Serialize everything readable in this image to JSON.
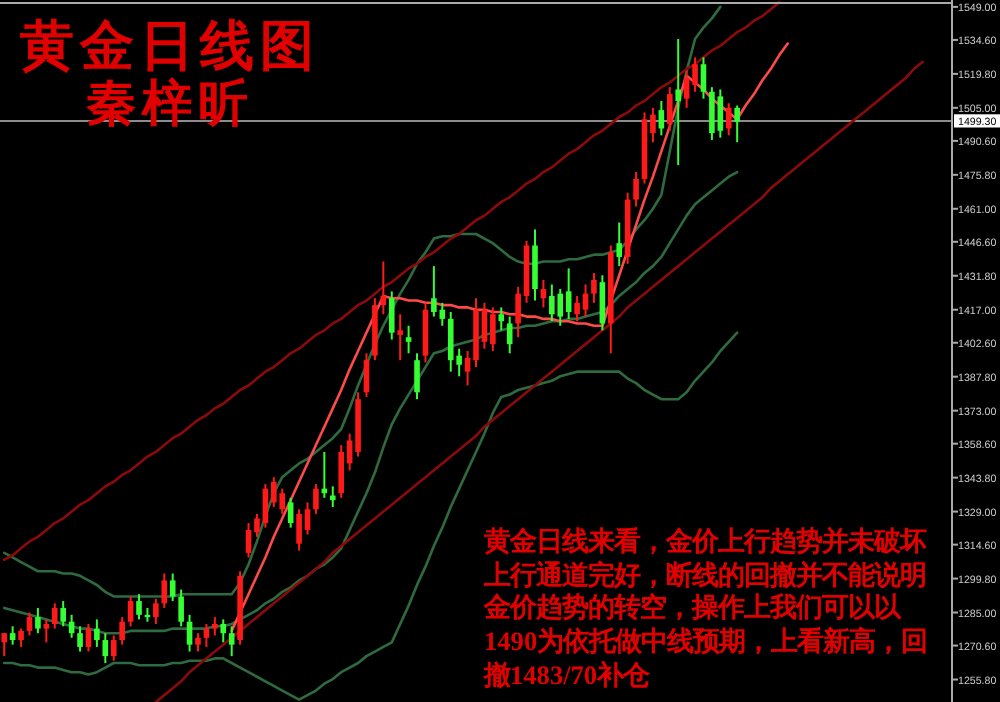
{
  "chart_data": {
    "type": "candlestick",
    "title": "黄金日线图",
    "subtitle": "秦梓昕",
    "annotations": [
      "黄金日线来看，金价上行趋势并未破坏上行通道完好，断线的回撤并不能说明金价趋势的转空，操作上我们可以以1490为依托做中线预期，上看新高，回撤1483/70补仓"
    ],
    "categories": [
      null,
      null,
      null,
      null,
      null,
      null,
      null,
      null,
      null,
      null,
      null,
      null,
      null,
      null,
      null,
      null,
      null,
      null,
      null,
      null,
      null,
      null,
      null,
      null,
      null,
      null,
      null,
      null,
      null,
      null,
      null,
      null,
      null,
      null,
      null,
      null,
      null,
      null,
      null,
      null,
      null,
      null,
      null,
      null,
      null,
      null,
      null,
      null,
      null,
      null,
      null,
      null,
      null,
      null,
      null,
      null,
      null,
      null,
      null,
      null,
      null,
      null,
      null,
      null,
      null,
      null,
      null,
      null,
      null,
      null,
      null,
      null,
      null,
      null,
      null,
      null,
      null,
      null,
      null,
      null,
      null,
      null,
      null,
      null,
      null,
      null,
      null,
      null,
      null,
      null,
      null,
      null,
      null,
      null,
      null,
      null,
      null,
      null,
      null,
      null,
      null,
      null,
      null,
      null,
      null,
      null,
      null,
      null,
      null,
      null,
      null,
      null,
      null
    ],
    "ohlc": [
      [
        1272,
        1276,
        1266,
        1276
      ],
      [
        1276,
        1279,
        1271,
        1273
      ],
      [
        1273,
        1278,
        1270,
        1277
      ],
      [
        1277,
        1285,
        1275,
        1283
      ],
      [
        1283,
        1287,
        1276,
        1278
      ],
      [
        1278,
        1282,
        1272,
        1280
      ],
      [
        1280,
        1289,
        1278,
        1287
      ],
      [
        1287,
        1290,
        1279,
        1281
      ],
      [
        1281,
        1284,
        1274,
        1276
      ],
      [
        1276,
        1279,
        1268,
        1270
      ],
      [
        1270,
        1280,
        1268,
        1278
      ],
      [
        1278,
        1282,
        1270,
        1273
      ],
      [
        1273,
        1276,
        1263,
        1266
      ],
      [
        1266,
        1275,
        1264,
        1273
      ],
      [
        1273,
        1283,
        1271,
        1281
      ],
      [
        1281,
        1292,
        1279,
        1290
      ],
      [
        1290,
        1293,
        1282,
        1284
      ],
      [
        1284,
        1287,
        1281,
        1283
      ],
      [
        1283,
        1291,
        1280,
        1289
      ],
      [
        1289,
        1302,
        1287,
        1299
      ],
      [
        1299,
        1302,
        1290,
        1292
      ],
      [
        1292,
        1295,
        1279,
        1281
      ],
      [
        1281,
        1284,
        1268,
        1271
      ],
      [
        1271,
        1276,
        1268,
        1274
      ],
      [
        1274,
        1280,
        1270,
        1278
      ],
      [
        1278,
        1283,
        1275,
        1280
      ],
      [
        1280,
        1282,
        1272,
        1276
      ],
      [
        1276,
        1279,
        1266,
        1271
      ],
      [
        1273,
        1303,
        1271,
        1301
      ],
      [
        1311,
        1324,
        1309,
        1321
      ],
      [
        1320,
        1328,
        1318,
        1326
      ],
      [
        1324,
        1341,
        1322,
        1339
      ],
      [
        1333,
        1344,
        1331,
        1342
      ],
      [
        1330,
        1339,
        1328,
        1337
      ],
      [
        1333,
        1335,
        1322,
        1324
      ],
      [
        1315,
        1330,
        1312,
        1328
      ],
      [
        1321,
        1333,
        1319,
        1330
      ],
      [
        1330,
        1341,
        1328,
        1339
      ],
      [
        1339,
        1355,
        1335,
        1337
      ],
      [
        1336,
        1340,
        1331,
        1334
      ],
      [
        1337,
        1358,
        1335,
        1355
      ],
      [
        1350,
        1363,
        1347,
        1360
      ],
      [
        1355,
        1381,
        1353,
        1378
      ],
      [
        1381,
        1398,
        1379,
        1395
      ],
      [
        1397,
        1422,
        1395,
        1419
      ],
      [
        1419,
        1438,
        1415,
        1423
      ],
      [
        1422,
        1425,
        1404,
        1407
      ],
      [
        1406,
        1415,
        1395,
        1408
      ],
      [
        1405,
        1410,
        1398,
        1403
      ],
      [
        1395,
        1398,
        1378,
        1381
      ],
      [
        1397,
        1420,
        1394,
        1417
      ],
      [
        1422,
        1436,
        1414,
        1416
      ],
      [
        1417,
        1420,
        1410,
        1413
      ],
      [
        1413,
        1416,
        1390,
        1395
      ],
      [
        1397,
        1400,
        1388,
        1393
      ],
      [
        1390,
        1399,
        1384,
        1396
      ],
      [
        1395,
        1422,
        1392,
        1417
      ],
      [
        1403,
        1420,
        1400,
        1417
      ],
      [
        1402,
        1418,
        1399,
        1415
      ],
      [
        1415,
        1418,
        1408,
        1412
      ],
      [
        1411,
        1414,
        1398,
        1402
      ],
      [
        1411,
        1427,
        1405,
        1424
      ],
      [
        1423,
        1447,
        1420,
        1445
      ],
      [
        1445,
        1452,
        1421,
        1426
      ],
      [
        1422,
        1430,
        1418,
        1426
      ],
      [
        1423,
        1428,
        1412,
        1415
      ],
      [
        1424,
        1426,
        1410,
        1414
      ],
      [
        1425,
        1435,
        1413,
        1416
      ],
      [
        1415,
        1423,
        1412,
        1420
      ],
      [
        1417,
        1428,
        1414,
        1424
      ],
      [
        1424,
        1433,
        1420,
        1430
      ],
      [
        1429,
        1432,
        1408,
        1411
      ],
      [
        1411,
        1445,
        1398,
        1442
      ],
      [
        1446,
        1455,
        1436,
        1440
      ],
      [
        1440,
        1468,
        1437,
        1465
      ],
      [
        1465,
        1477,
        1462,
        1474
      ],
      [
        1474,
        1503,
        1472,
        1500
      ],
      [
        1494,
        1505,
        1490,
        1502
      ],
      [
        1504,
        1508,
        1493,
        1496
      ],
      [
        1498,
        1514,
        1495,
        1511
      ],
      [
        1513,
        1535,
        1480,
        1508
      ],
      [
        1509,
        1521,
        1505,
        1518
      ],
      [
        1515,
        1527,
        1512,
        1524
      ],
      [
        1524,
        1527,
        1509,
        1512
      ],
      [
        1512,
        1514,
        1491,
        1494
      ],
      [
        1510,
        1513,
        1492,
        1495
      ],
      [
        1496,
        1507,
        1493,
        1505
      ],
      [
        1505,
        1506,
        1490,
        1499
      ],
      null,
      null,
      null,
      null,
      null,
      null,
      null,
      null,
      null,
      null,
      null,
      null,
      null,
      null,
      null,
      null,
      null,
      null,
      null,
      null,
      null,
      null,
      null,
      null,
      null
    ],
    "colors": [
      "#ff1a1a",
      "#33ff33",
      "#ff1a1a",
      "#ff1a1a",
      "#33ff33",
      "#ff1a1a",
      "#ff1a1a",
      "#33ff33",
      "#33ff33",
      "#33ff33",
      "#ff1a1a",
      "#33ff33",
      "#33ff33",
      "#ff1a1a",
      "#ff1a1a",
      "#ff1a1a",
      "#33ff33",
      "#33ff33",
      "#ff1a1a",
      "#ff1a1a",
      "#33ff33",
      "#33ff33",
      "#33ff33",
      "#ff1a1a",
      "#ff1a1a",
      "#ff1a1a",
      "#33ff33",
      "#33ff33",
      "#ff1a1a",
      "#ff1a1a",
      "#ff1a1a",
      "#ff1a1a",
      "#ff1a1a",
      "#ff1a1a",
      "#33ff33",
      "#ff1a1a",
      "#ff1a1a",
      "#ff1a1a",
      "#33ff33",
      "#33ff33",
      "#ff1a1a",
      "#ff1a1a",
      "#ff1a1a",
      "#ff1a1a",
      "#ff1a1a",
      "#ff1a1a",
      "#33ff33",
      "#ff1a1a",
      "#33ff33",
      "#33ff33",
      "#ff1a1a",
      "#33ff33",
      "#33ff33",
      "#33ff33",
      "#33ff33",
      "#ff1a1a",
      "#ff1a1a",
      "#ff1a1a",
      "#ff1a1a",
      "#33ff33",
      "#33ff33",
      "#ff1a1a",
      "#ff1a1a",
      "#33ff33",
      "#ff1a1a",
      "#33ff33",
      "#33ff33",
      "#33ff33",
      "#ff1a1a",
      "#ff1a1a",
      "#ff1a1a",
      "#33ff33",
      "#ff1a1a",
      "#33ff33",
      "#ff1a1a",
      "#ff1a1a",
      "#ff1a1a",
      "#ff1a1a",
      "#33ff33",
      "#ff1a1a",
      "#33ff33",
      "#ff1a1a",
      "#ff1a1a",
      "#33ff33",
      "#33ff33",
      "#33ff33",
      "#ff1a1a",
      "#33ff33",
      null,
      null,
      null,
      null,
      null,
      null,
      null,
      null,
      null,
      null,
      null,
      null,
      null,
      null,
      null,
      null,
      null,
      null,
      null,
      null,
      null,
      null,
      null,
      null,
      null
    ],
    "series": [
      {
        "type": "line",
        "color": "#2e6b3e",
        "values": [
          1311,
          1309,
          1307,
          1305,
          1303,
          1303,
          1303,
          1302,
          1302,
          1301,
          1299,
          1297,
          1294,
          1292,
          1292,
          1292,
          1292,
          1292,
          1292,
          1292,
          1292,
          1293,
          1293,
          1293,
          1293,
          1293,
          1293,
          1293,
          1298,
          1306,
          1316,
          1327,
          1337,
          1344,
          1347,
          1350,
          1352,
          1355,
          1358,
          1361,
          1365,
          1374,
          1384,
          1393,
          1402,
          1410,
          1417,
          1424,
          1430,
          1437,
          1442,
          1448,
          1449,
          1449,
          1450,
          1450,
          1450,
          1448,
          1446,
          1443,
          1440,
          1438,
          1437,
          1437,
          1438,
          1438,
          1438,
          1439,
          1439,
          1440,
          1441,
          1441,
          1442,
          1443,
          1447,
          1452,
          1456,
          1461,
          1467,
          1486,
          1505,
          1521,
          1535,
          1540,
          1544,
          1549,
          null,
          null,
          null,
          null,
          null,
          null,
          null,
          null,
          null,
          null,
          null,
          null,
          null,
          null,
          null,
          null,
          null,
          null,
          null,
          null,
          null,
          null,
          null,
          null,
          null,
          null,
          null
        ]
      },
      {
        "type": "line",
        "color": "#2e6b3e",
        "values": [
          1287,
          1286,
          1285,
          1284,
          1283,
          1282,
          1281,
          1280,
          1279,
          1278,
          1278,
          1277,
          1276,
          1276,
          1276,
          1277,
          1277,
          1277,
          1277,
          1277,
          1278,
          1278,
          1278,
          1278,
          1278,
          1279,
          1279,
          1280,
          1282,
          1284,
          1286,
          1289,
          1291,
          1294,
          1296,
          1299,
          1301,
          1304,
          1306,
          1309,
          1313,
          1321,
          1329,
          1337,
          1346,
          1357,
          1367,
          1374,
          1380,
          1386,
          1392,
          1398,
          1399,
          1401,
          1402,
          1403,
          1404,
          1406,
          1407,
          1408,
          1409,
          1409,
          1410,
          1410,
          1411,
          1412,
          1412,
          1413,
          1413,
          1414,
          1415,
          1416,
          1419,
          1423,
          1426,
          1429,
          1433,
          1436,
          1440,
          1446,
          1452,
          1458,
          1463,
          1466,
          1469,
          1472,
          1475,
          1477,
          null,
          null,
          null,
          null,
          null,
          null,
          null,
          null,
          null,
          null,
          null,
          null,
          null,
          null,
          null,
          null,
          null,
          null,
          null,
          null,
          null,
          null,
          null,
          null,
          null
        ]
      },
      {
        "type": "line",
        "color": "#2e6b3e",
        "values": [
          1263,
          1263,
          1262,
          1262,
          1261,
          1261,
          1261,
          1260,
          1259,
          1259,
          1258,
          1259,
          1261,
          1263,
          1263,
          1263,
          1262,
          1262,
          1262,
          1262,
          1263,
          1263,
          1264,
          1264,
          1264,
          1265,
          1265,
          1263,
          1261,
          1259,
          1257,
          1255,
          1253,
          1251,
          1249,
          1247,
          1249,
          1251,
          1254,
          1256,
          1259,
          1261,
          1263,
          1266,
          1268,
          1270,
          1272,
          1280,
          1288,
          1297,
          1305,
          1314,
          1322,
          1331,
          1339,
          1347,
          1355,
          1363,
          1372,
          1379,
          1380,
          1382,
          1383,
          1384,
          1385,
          1386,
          1388,
          1389,
          1390,
          1390,
          1390,
          1390,
          1390,
          1390,
          1387,
          1385,
          1382,
          1380,
          1378,
          1378,
          1378,
          1381,
          1386,
          1390,
          1394,
          1399,
          1403,
          1407,
          null,
          null,
          null,
          null,
          null,
          null,
          null,
          null,
          null,
          null,
          null,
          null,
          null,
          null,
          null,
          null,
          null,
          null,
          null,
          null,
          null,
          null,
          null,
          null,
          null
        ]
      },
      {
        "type": "line",
        "color": "#8b0a0a",
        "values": [
          1308,
          1310,
          1313,
          1316,
          1318,
          1321,
          1324,
          1326,
          1329,
          1332,
          1334,
          1337,
          1340,
          1342,
          1345,
          1347,
          1350,
          1353,
          1355,
          1358,
          1361,
          1363,
          1366,
          1369,
          1371,
          1374,
          1376,
          1379,
          1382,
          1384,
          1387,
          1390,
          1392,
          1395,
          1398,
          1400,
          1403,
          1406,
          1408,
          1411,
          1413,
          1416,
          1419,
          1421,
          1424,
          1427,
          1429,
          1432,
          1435,
          1437,
          1440,
          1442,
          1445,
          1448,
          1450,
          1453,
          1456,
          1458,
          1461,
          1464,
          1466,
          1469,
          1472,
          1474,
          1477,
          1479,
          1482,
          1485,
          1487,
          1490,
          1493,
          1495,
          1498,
          1501,
          1503,
          1506,
          1508,
          1511,
          1514,
          1516,
          1519,
          1522,
          1524,
          1527,
          1530,
          1532,
          1535,
          1538,
          1540,
          1543,
          1545,
          1548,
          1551,
          null,
          null,
          null,
          null,
          null,
          null,
          null,
          null,
          null,
          null,
          null,
          null,
          null,
          null,
          null,
          null,
          null,
          null,
          null,
          null
        ]
      },
      {
        "type": "line",
        "color": "#8b0a0a",
        "values": [
          null,
          null,
          null,
          null,
          null,
          null,
          null,
          null,
          null,
          null,
          null,
          null,
          null,
          null,
          null,
          null,
          null,
          null,
          1246,
          1249,
          1252,
          1255,
          1259,
          1262,
          1265,
          1268,
          1271,
          1274,
          1277,
          1280,
          1283,
          1286,
          1289,
          1292,
          1295,
          1298,
          1301,
          1304,
          1307,
          1311,
          1314,
          1317,
          1320,
          1323,
          1326,
          1329,
          1332,
          1335,
          1338,
          1341,
          1344,
          1347,
          1350,
          1353,
          1356,
          1359,
          1362,
          1366,
          1369,
          1372,
          1375,
          1378,
          1381,
          1384,
          1387,
          1390,
          1393,
          1396,
          1399,
          1402,
          1405,
          1408,
          1411,
          1414,
          1418,
          1421,
          1424,
          1427,
          1430,
          1433,
          1436,
          1439,
          1442,
          1445,
          1448,
          1451,
          1454,
          1457,
          1460,
          1463,
          1466,
          1470,
          1473,
          1476,
          1479,
          1482,
          1485,
          1488,
          1491,
          1494,
          1497,
          1500,
          1503,
          1506,
          1509,
          1512,
          1515,
          1518,
          1522,
          1525,
          null,
          null,
          null
        ]
      },
      {
        "type": "line",
        "color": "#ff4a4a",
        "values": [
          null,
          null,
          null,
          null,
          null,
          null,
          null,
          null,
          null,
          null,
          null,
          null,
          null,
          null,
          null,
          null,
          null,
          null,
          null,
          null,
          null,
          null,
          null,
          null,
          null,
          null,
          null,
          1277,
          1285,
          1293,
          1301,
          1309,
          1318,
          1326,
          1334,
          1342,
          1350,
          1358,
          1366,
          1374,
          1382,
          1391,
          1399,
          1407,
          1415,
          1423,
          1422,
          1422,
          1421,
          1421,
          1420,
          1420,
          1419,
          1419,
          1418,
          1418,
          1417,
          1417,
          1416,
          1416,
          1415,
          1415,
          1414,
          1414,
          1413,
          1413,
          1412,
          1412,
          1411,
          1411,
          1410,
          1410,
          1421,
          1432,
          1443,
          1454,
          1465,
          1475,
          1486,
          1497,
          1508,
          1519,
          1516,
          1513,
          1509,
          1506,
          1503,
          1500,
          1506,
          1511,
          1517,
          1522,
          1528,
          1533,
          null,
          null,
          null,
          null,
          null,
          null,
          null,
          null,
          null,
          null,
          null,
          null,
          null,
          null,
          null,
          null,
          null,
          null,
          null
        ]
      }
    ],
    "ref_lines": [
      {
        "axis": "y",
        "value": 1499.3,
        "label": "1499.30",
        "color": "#8c8c8c"
      }
    ],
    "ylim": [
      1246,
      1552
    ],
    "yticks": [
      {
        "value": 1549.0,
        "label": "1549.00"
      },
      {
        "value": 1534.6,
        "label": "1534.60"
      },
      {
        "value": 1519.8,
        "label": "1519.80"
      },
      {
        "value": 1505.0,
        "label": "1505.00"
      },
      {
        "value": 1490.6,
        "label": "1490.60"
      },
      {
        "value": 1475.8,
        "label": "1475.80"
      },
      {
        "value": 1461.0,
        "label": "1461.00"
      },
      {
        "value": 1446.6,
        "label": "1446.60"
      },
      {
        "value": 1431.8,
        "label": "1431.80"
      },
      {
        "value": 1417.0,
        "label": "1417.00"
      },
      {
        "value": 1402.6,
        "label": "1402.60"
      },
      {
        "value": 1387.8,
        "label": "1387.80"
      },
      {
        "value": 1373.0,
        "label": "1373.00"
      },
      {
        "value": 1358.6,
        "label": "1358.60"
      },
      {
        "value": 1343.8,
        "label": "1343.80"
      },
      {
        "value": 1329.0,
        "label": "1329.00"
      },
      {
        "value": 1314.6,
        "label": "1314.60"
      },
      {
        "value": 1299.8,
        "label": "1299.80"
      },
      {
        "value": 1285.0,
        "label": "1285.00"
      },
      {
        "value": 1270.6,
        "label": "1270.60"
      },
      {
        "value": 1255.8,
        "label": "1255.80"
      }
    ],
    "tick_labels": "y"
  }
}
